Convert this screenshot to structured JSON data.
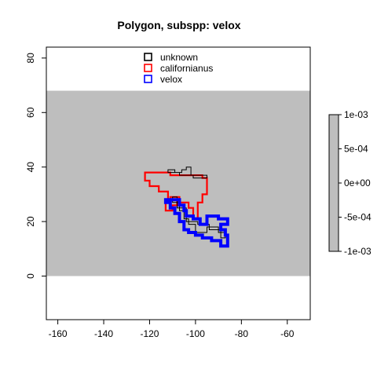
{
  "chart_data": {
    "type": "map",
    "title": "Polygon, subspp: velox",
    "xlabel": "",
    "ylabel": "",
    "xlim": [
      -165,
      -50
    ],
    "ylim": [
      -16,
      84
    ],
    "x_ticks": [
      -160,
      -140,
      -120,
      -100,
      -80,
      -60
    ],
    "x_tick_labels": [
      "-160",
      "-140",
      "-120",
      "-100",
      "-80",
      "-60"
    ],
    "y_ticks": [
      0,
      20,
      40,
      60,
      80
    ],
    "y_tick_labels": [
      "0",
      "20",
      "40",
      "60",
      "80"
    ],
    "raster_extent": {
      "x": [
        -165,
        -50
      ],
      "y": [
        0,
        68
      ]
    },
    "raster_color": "#BEBEBE",
    "legend": {
      "position": "top",
      "entries": [
        {
          "label": "unknown",
          "color": "#000000"
        },
        {
          "label": "californianus",
          "color": "#FF0000"
        },
        {
          "label": "velox",
          "color": "#0000FF"
        }
      ]
    },
    "colorbar": {
      "range": [
        -0.001,
        0.001
      ],
      "ticks": [
        0.001,
        0.0005,
        0,
        -0.0005,
        -0.001
      ],
      "tick_labels": [
        "1e-03",
        "5e-04",
        "0e+00",
        "-5e-04",
        "-1e-03"
      ],
      "color": "#BEBEBE"
    },
    "series": [
      {
        "name": "californianus",
        "color": "#FF0000",
        "polygon": [
          [
            -122,
            38
          ],
          [
            -111,
            38
          ],
          [
            -111,
            37
          ],
          [
            -97,
            37
          ],
          [
            -97,
            36
          ],
          [
            -95,
            36
          ],
          [
            -95,
            30
          ],
          [
            -97,
            30
          ],
          [
            -97,
            27
          ],
          [
            -99,
            27
          ],
          [
            -99,
            21
          ],
          [
            -101,
            21
          ],
          [
            -101,
            25
          ],
          [
            -103,
            25
          ],
          [
            -103,
            27
          ],
          [
            -107,
            27
          ],
          [
            -107,
            29
          ],
          [
            -111,
            29
          ],
          [
            -111,
            27
          ],
          [
            -113,
            27
          ],
          [
            -113,
            24
          ],
          [
            -110,
            24
          ],
          [
            -110,
            26
          ],
          [
            -108,
            26
          ],
          [
            -108,
            28
          ],
          [
            -112,
            28
          ],
          [
            -112,
            31
          ],
          [
            -116,
            31
          ],
          [
            -116,
            33
          ],
          [
            -120,
            33
          ],
          [
            -120,
            35
          ],
          [
            -122,
            35
          ]
        ]
      },
      {
        "name": "unknown",
        "color": "#000000",
        "polygon": [
          [
            -112,
            38
          ],
          [
            -112,
            39
          ],
          [
            -109,
            39
          ],
          [
            -109,
            38
          ],
          [
            -106,
            38
          ],
          [
            -106,
            39
          ],
          [
            -104,
            39
          ],
          [
            -104,
            40
          ],
          [
            -102,
            40
          ],
          [
            -102,
            37
          ],
          [
            -95,
            37
          ],
          [
            -95,
            36
          ],
          [
            -101,
            36
          ],
          [
            -101,
            37
          ],
          [
            -107,
            37
          ],
          [
            -107,
            38
          ]
        ]
      },
      {
        "name": "unknown",
        "color": "#000000",
        "polygon": [
          [
            -110,
            29
          ],
          [
            -110,
            27
          ],
          [
            -107,
            27
          ],
          [
            -107,
            24
          ],
          [
            -105,
            24
          ],
          [
            -105,
            21
          ],
          [
            -103,
            21
          ],
          [
            -103,
            19
          ],
          [
            -100,
            19
          ],
          [
            -100,
            16
          ],
          [
            -95,
            16
          ],
          [
            -95,
            18
          ],
          [
            -90,
            18
          ],
          [
            -90,
            16
          ],
          [
            -87,
            16
          ],
          [
            -87,
            14
          ],
          [
            -89,
            14
          ],
          [
            -89,
            17
          ],
          [
            -94,
            17
          ],
          [
            -94,
            19
          ],
          [
            -99,
            19
          ],
          [
            -99,
            20
          ],
          [
            -104,
            20
          ],
          [
            -104,
            25
          ],
          [
            -108,
            25
          ],
          [
            -108,
            29
          ]
        ]
      },
      {
        "name": "velox",
        "color": "#0000FF",
        "polygon": [
          [
            -113,
            28
          ],
          [
            -107,
            28
          ],
          [
            -107,
            26
          ],
          [
            -105,
            26
          ],
          [
            -105,
            24
          ],
          [
            -104,
            24
          ],
          [
            -104,
            22
          ],
          [
            -101,
            22
          ],
          [
            -101,
            21
          ],
          [
            -98,
            21
          ],
          [
            -98,
            19
          ],
          [
            -95,
            19
          ],
          [
            -95,
            22
          ],
          [
            -90,
            22
          ],
          [
            -90,
            21
          ],
          [
            -86,
            21
          ],
          [
            -86,
            19
          ],
          [
            -89,
            19
          ],
          [
            -89,
            17
          ],
          [
            -87,
            17
          ],
          [
            -87,
            15
          ],
          [
            -86,
            15
          ],
          [
            -86,
            11
          ],
          [
            -89,
            11
          ],
          [
            -89,
            13
          ],
          [
            -93,
            13
          ],
          [
            -93,
            14
          ],
          [
            -97,
            14
          ],
          [
            -97,
            15
          ],
          [
            -100,
            15
          ],
          [
            -100,
            16
          ],
          [
            -103,
            16
          ],
          [
            -103,
            17
          ],
          [
            -105,
            17
          ],
          [
            -105,
            20
          ],
          [
            -107,
            20
          ],
          [
            -107,
            23
          ],
          [
            -109,
            23
          ],
          [
            -109,
            25
          ],
          [
            -111,
            25
          ],
          [
            -111,
            27
          ],
          [
            -113,
            27
          ]
        ]
      }
    ]
  }
}
